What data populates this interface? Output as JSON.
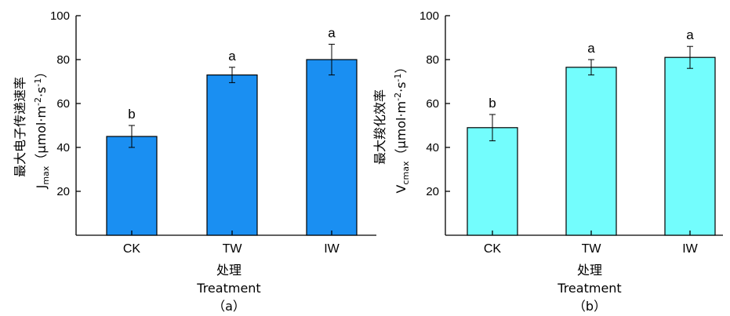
{
  "chart_data": [
    {
      "type": "bar",
      "panel_label": "（a）",
      "xlabel_cn": "处理",
      "xlabel": "Treatment",
      "ylabel_cn": "最大电子传递速率",
      "ylabel_sym": "J",
      "ylabel_sub": "max",
      "ylabel_unit_open": "（μmol·m",
      "ylabel_unit_exp1": "-2",
      "ylabel_unit_mid": "·s",
      "ylabel_unit_exp2": "-1",
      "ylabel_unit_close": "）",
      "categories": [
        "CK",
        "TW",
        "IW"
      ],
      "values": [
        45,
        73,
        80
      ],
      "errors": [
        5,
        3.5,
        7
      ],
      "significance": [
        "b",
        "a",
        "a"
      ],
      "ylim": [
        0,
        100
      ],
      "yticks": [
        "20",
        "40",
        "60",
        "80",
        "100"
      ],
      "bar_color": "#1a8ff2",
      "grid": false
    },
    {
      "type": "bar",
      "panel_label": "（b）",
      "xlabel_cn": "处理",
      "xlabel": "Treatment",
      "ylabel_cn": "最大羧化效率",
      "ylabel_sym": "V",
      "ylabel_sub": "cmax",
      "ylabel_unit_open": "（μmol·m",
      "ylabel_unit_exp1": "-2",
      "ylabel_unit_mid": "·s",
      "ylabel_unit_exp2": "-1",
      "ylabel_unit_close": "）",
      "categories": [
        "CK",
        "TW",
        "IW"
      ],
      "values": [
        49,
        76.5,
        81
      ],
      "errors": [
        6,
        3.5,
        5
      ],
      "significance": [
        "b",
        "a",
        "a"
      ],
      "ylim": [
        0,
        100
      ],
      "yticks": [
        "20",
        "40",
        "60",
        "80",
        "100"
      ],
      "bar_color": "#73fdfd",
      "grid": false
    }
  ]
}
